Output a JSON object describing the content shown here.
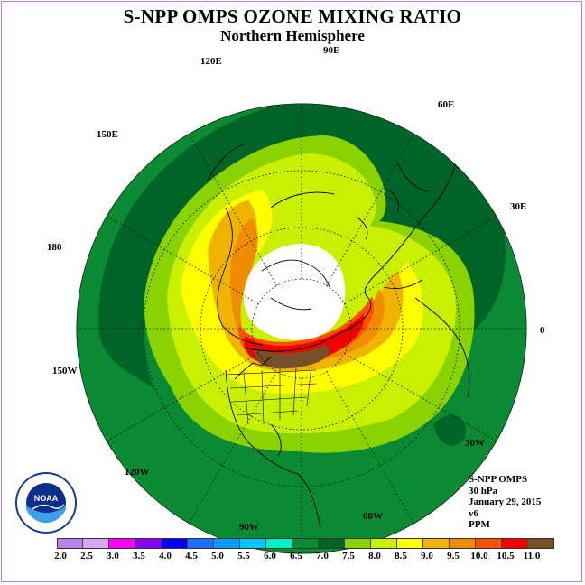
{
  "title": "S-NPP OMPS OZONE MIXING RATIO",
  "subtitle": "Northern Hemisphere",
  "longitude_labels": {
    "e90": "90E",
    "e60": "60E",
    "e30": "30E",
    "e0": "0",
    "e120": "120E",
    "e150": "150E",
    "e180": "180",
    "w150": "150W",
    "w120": "120W",
    "w90": "90W",
    "w60": "60W",
    "w30": "30W"
  },
  "info": {
    "instrument": "S-NPP OMPS",
    "level": "30 hPa",
    "date": "January 29, 2015",
    "version": "v6",
    "units": "PPM"
  },
  "logo": {
    "text": "NOAA",
    "ring_text": "NATIONAL OCEANIC AND ATMOSPHERIC ADMINISTRATION · U.S. DEPARTMENT OF COMMERCE"
  },
  "colorbar": {
    "ticks": [
      "2.0",
      "2.5",
      "3.0",
      "3.5",
      "4.0",
      "4.5",
      "5.0",
      "5.5",
      "6.0",
      "6.5",
      "7.0",
      "7.5",
      "8.0",
      "8.5",
      "9.0",
      "9.5",
      "10.0",
      "10.5",
      "11.0"
    ],
    "colors": [
      "#b882f0",
      "#d8a8f0",
      "#ff00ff",
      "#8800ee",
      "#0000ff",
      "#1e6eff",
      "#00a0ff",
      "#00c8ff",
      "#00f0c8",
      "#0a8a32",
      "#006428",
      "#8ad200",
      "#c8f000",
      "#ffff00",
      "#f0b400",
      "#f08c00",
      "#ff5000",
      "#f00000",
      "#785028"
    ]
  },
  "map": {
    "projection": "north-polar-stereographic",
    "missing_data_color": "#ffffff",
    "palette_used": [
      "#0a8a32",
      "#006428",
      "#8ad200",
      "#c8f000",
      "#ffff00",
      "#f0b400",
      "#f08c00",
      "#ff5000",
      "#f00000",
      "#785028"
    ]
  }
}
